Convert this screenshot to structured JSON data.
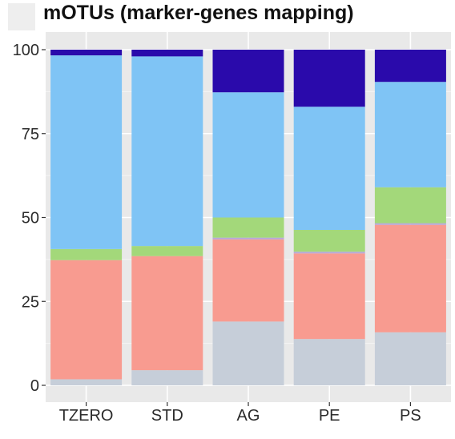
{
  "chart_data": {
    "type": "bar",
    "stacked": true,
    "title": "mOTUs (marker-genes mapping)",
    "xlabel": "",
    "ylabel": "",
    "ylim": [
      0,
      100
    ],
    "yticks": [
      0,
      25,
      50,
      75,
      100
    ],
    "grid": true,
    "legend": "none",
    "categories": [
      "TZERO",
      "STD",
      "AG",
      "PE",
      "PS"
    ],
    "series": [
      {
        "color": "#c6ced9",
        "values": [
          1.8,
          4.5,
          19,
          13.8,
          15.8
        ]
      },
      {
        "color": "#f89b90",
        "values": [
          35.5,
          34,
          24.5,
          25.5,
          32
        ]
      },
      {
        "color": "#b8a8d8",
        "values": [
          0,
          0,
          0.5,
          0.5,
          0.5
        ]
      },
      {
        "color": "#a3d87a",
        "values": [
          3.3,
          3,
          6,
          6.5,
          10.7
        ]
      },
      {
        "color": "#7fc4f5",
        "values": [
          57.7,
          56.5,
          37.3,
          36.7,
          31.4
        ]
      },
      {
        "color": "#2a0aab",
        "values": [
          1.7,
          2,
          12.7,
          17,
          9.6
        ]
      }
    ]
  }
}
